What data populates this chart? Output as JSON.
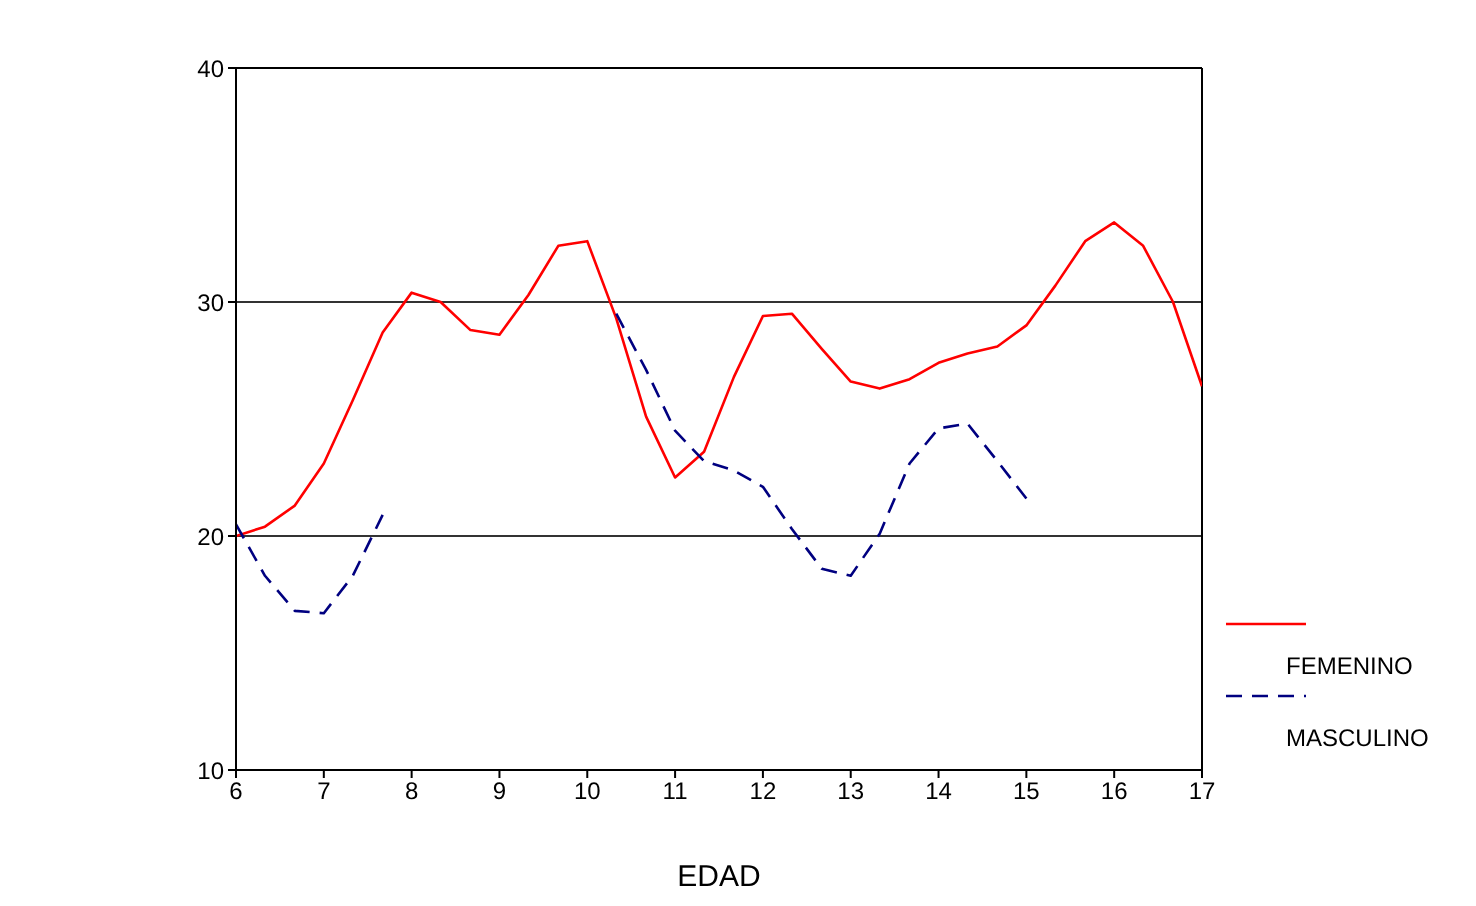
{
  "chart_data": {
    "type": "line",
    "xlabel": "EDAD",
    "x": [
      6,
      6.33,
      6.67,
      7,
      7.33,
      7.67,
      8,
      8.33,
      8.67,
      9,
      9.33,
      9.67,
      10,
      10.33,
      10.67,
      11,
      11.33,
      11.67,
      12,
      12.33,
      12.67,
      13,
      13.33,
      13.67,
      14,
      14.33,
      14.67,
      15,
      15.33,
      15.67,
      16,
      16.33,
      16.67,
      17
    ],
    "series": [
      {
        "name": "FEMENINO",
        "color": "#ff0000",
        "line_style": "solid",
        "values": [
          20,
          20.4,
          21.3,
          23.1,
          25.8,
          28.7,
          30.4,
          30,
          28.8,
          28.6,
          30.3,
          32.4,
          32.6,
          29.3,
          25.1,
          22.5,
          23.6,
          26.8,
          29.4,
          29.5,
          28,
          26.6,
          26.3,
          26.7,
          27.4,
          27.8,
          28.1,
          29,
          30.7,
          32.6,
          33.4,
          32.4,
          30,
          26.4
        ]
      },
      {
        "name": "MASCULINO",
        "color": "#000080",
        "line_style": "dashed",
        "values": [
          20.5,
          18.3,
          16.8,
          16.7,
          18.3,
          20.9,
          null,
          null,
          null,
          null,
          null,
          null,
          null,
          29.5,
          27.1,
          24.5,
          23.2,
          22.8,
          22.1,
          20.3,
          18.6,
          18.3,
          20.1,
          23.1,
          24.6,
          24.8,
          23.2,
          21.6,
          null,
          null,
          null,
          null,
          null,
          null
        ]
      }
    ],
    "xlim": [
      6,
      17
    ],
    "xticks": [
      6,
      7,
      8,
      9,
      10,
      11,
      12,
      13,
      14,
      15,
      16,
      17
    ],
    "ylim": [
      10,
      40
    ],
    "yticks": [
      10,
      20,
      30,
      40
    ],
    "grid": "y",
    "legend": "right",
    "marker": "none"
  }
}
